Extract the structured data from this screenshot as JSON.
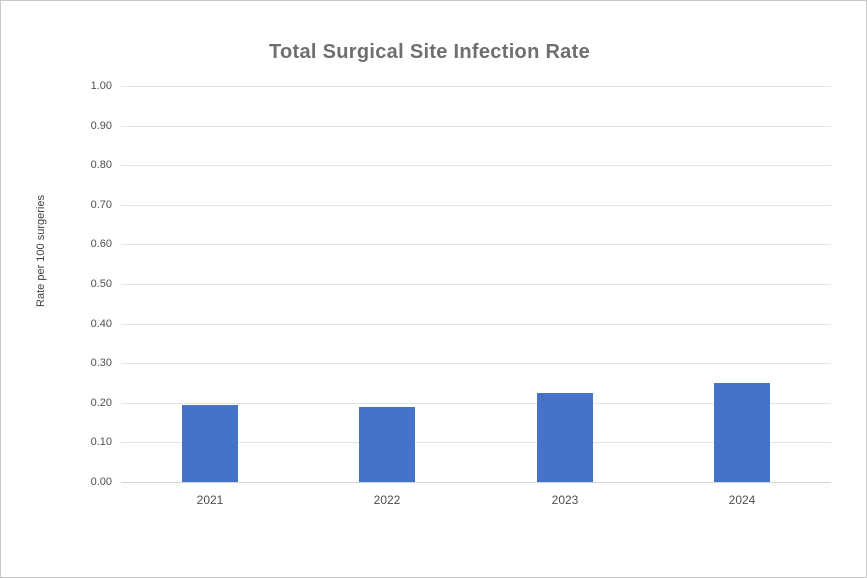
{
  "chart": {
    "title": "Total Surgical Site Infection Rate",
    "y_axis_title": "Rate per 100 surgeries"
  },
  "chart_data": {
    "type": "bar",
    "title": "Total Surgical Site Infection Rate",
    "categories": [
      "2021",
      "2022",
      "2023",
      "2024"
    ],
    "values": [
      0.195,
      0.19,
      0.225,
      0.25
    ],
    "xlabel": "",
    "ylabel": "Rate per 100 surgeries",
    "ylim": [
      0,
      1
    ],
    "ytick_step": 0.1,
    "ytick_labels": [
      "0.00",
      "0.10",
      "0.20",
      "0.30",
      "0.40",
      "0.50",
      "0.60",
      "0.70",
      "0.80",
      "0.90",
      "1.00"
    ],
    "grid": true,
    "legend": false,
    "bar_color": "#4573c8",
    "gridline_color": "#e2e2e2",
    "axis_line_color": "#d4d4d4",
    "title_color": "#6f6f6f",
    "tick_label_color": "#4f4f4f"
  }
}
